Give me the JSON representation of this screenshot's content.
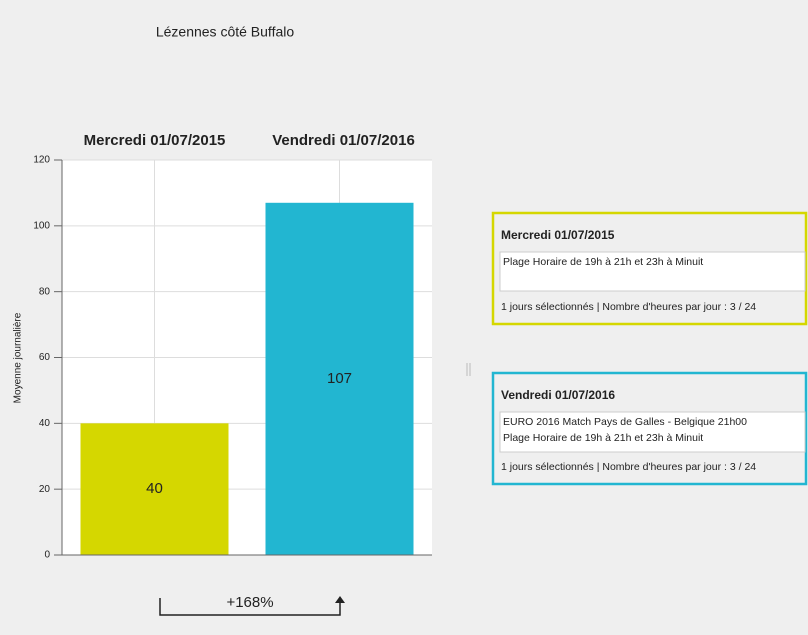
{
  "title": "Lézennes côté Buffalo",
  "chart_data": {
    "type": "bar",
    "categories": [
      "Mercredi 01/07/2015",
      "Vendredi 01/07/2016"
    ],
    "values": [
      40,
      107
    ],
    "colors": [
      "#d5d700",
      "#22b6d1"
    ],
    "ylabel": "Moyenne journalière",
    "ylim": [
      0,
      120
    ],
    "yticks": [
      0,
      20,
      40,
      60,
      80,
      100,
      120
    ],
    "grid": true
  },
  "change": "+168%",
  "panels": [
    {
      "title": "Mercredi 01/07/2015",
      "color": "#d5d700",
      "lines": [
        "Plage Horaire de 19h à 21h et 23h à Minuit"
      ],
      "footer": "1 jours sélectionnés | Nombre d'heures par jour : 3 / 24"
    },
    {
      "title": "Vendredi 01/07/2016",
      "color": "#22b6d1",
      "lines": [
        "EURO 2016 Match Pays de Galles - Belgique 21h00",
        "Plage Horaire de 19h à 21h et 23h à Minuit"
      ],
      "footer": "1 jours sélectionnés | Nombre d'heures par jour : 3 / 24"
    }
  ]
}
